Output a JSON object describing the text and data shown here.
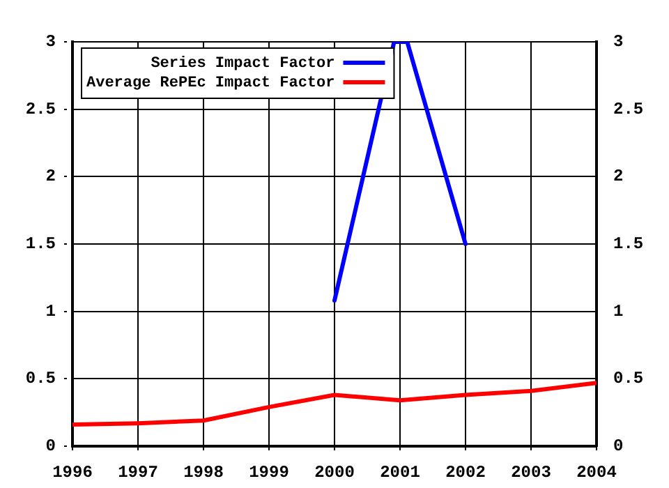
{
  "chart_data": {
    "type": "line",
    "series": [
      {
        "name": "Series Impact Factor",
        "color": "#0000ff",
        "x": [
          2000,
          2000.91,
          2001.11,
          2002
        ],
        "values": [
          1.08,
          3,
          3,
          1.5
        ]
      },
      {
        "name": "Average RePEc Impact Factor",
        "color": "#ff0000",
        "x": [
          1996,
          1997,
          1998,
          1999,
          2000,
          2001,
          2002,
          2003,
          2004
        ],
        "values": [
          0.16,
          0.17,
          0.19,
          0.29,
          0.38,
          0.34,
          0.38,
          0.41,
          0.47
        ]
      }
    ],
    "xlim": [
      1996,
      2004
    ],
    "xticks": [
      1996,
      1997,
      1998,
      1999,
      2000,
      2001,
      2002,
      2003,
      2004
    ],
    "ylim": [
      0,
      3
    ],
    "yticks": [
      0,
      0.5,
      1,
      1.5,
      2,
      2.5,
      3
    ],
    "y2lim": [
      0,
      3
    ],
    "y2ticks": [
      0,
      0.5,
      1,
      1.5,
      2,
      2.5,
      3
    ],
    "grid": true,
    "legend": "top left",
    "marker": "none"
  }
}
